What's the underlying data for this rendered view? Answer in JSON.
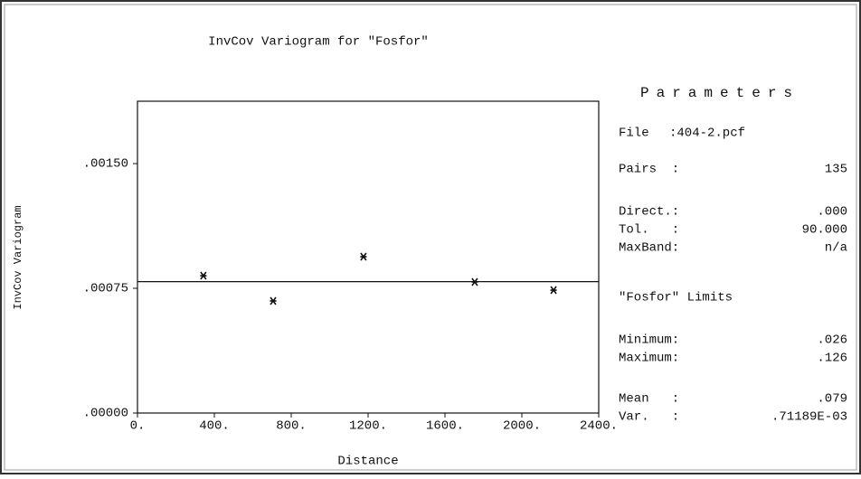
{
  "chart_data": {
    "type": "scatter",
    "title": "InvCov Variogram for \"Fosfor\"",
    "x_label": "Distance",
    "y_label": "InvCov Variogram",
    "x": [
      343,
      706,
      1176,
      1755,
      2165
    ],
    "values": [
      0.000826,
      0.000674,
      0.00094,
      0.000788,
      0.000739
    ],
    "color": "#111111",
    "model_level": 0.00079,
    "xlim": [
      0,
      2400
    ],
    "xticks": [
      {
        "value": 0,
        "label": "0."
      },
      {
        "value": 400,
        "label": "400."
      },
      {
        "value": 800,
        "label": "800."
      },
      {
        "value": 1200,
        "label": "1200."
      },
      {
        "value": 1600,
        "label": "1600."
      },
      {
        "value": 2000,
        "label": "2000."
      },
      {
        "value": 2400,
        "label": "2400."
      }
    ],
    "ylim": [
      0,
      0.001875
    ],
    "yticks": [
      {
        "value": 0,
        "label": ".00000"
      },
      {
        "value": 0.00075,
        "label": ".00075"
      },
      {
        "value": 0.0015,
        "label": ".00150"
      }
    ]
  },
  "parameters": {
    "title": "Parameters",
    "groups": [
      [
        {
          "label": "File",
          "value": ":404-2.pcf"
        }
      ],
      [
        {
          "label": "Pairs  :",
          "value": "135"
        }
      ],
      [
        {
          "label": "Direct.:",
          "value": ".000"
        },
        {
          "label": "Tol.   :",
          "value": "90.000"
        },
        {
          "label": "MaxBand:",
          "value": "n/a"
        }
      ],
      [
        {
          "label": "\"Fosfor\" Limits",
          "value": null
        }
      ],
      [
        {
          "label": "Minimum:",
          "value": ".026"
        },
        {
          "label": "Maximum:",
          "value": ".126"
        }
      ],
      [
        {
          "label": "Mean   :",
          "value": ".079"
        },
        {
          "label": "Var.   :",
          "value": ".71189E-03"
        }
      ]
    ]
  }
}
